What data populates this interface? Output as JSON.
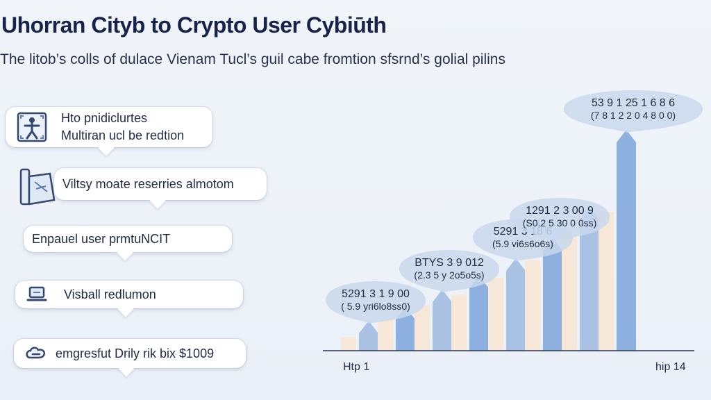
{
  "title": "Uhorran Cityb to Crypto User Cybiūth",
  "subtitle": "The litob’s colls of dulace Vienam Tucl’s guil cabe fromtion sfsrnd’s golial pilins",
  "cards": [
    {
      "lines": [
        "Hto pnidiclurtes",
        "Multiran ucl be redtion"
      ],
      "icon": "person-frame-icon"
    },
    {
      "lines": [
        "Viltsy moate reserries almotom"
      ],
      "icon": "document-scroll-icon"
    },
    {
      "lines": [
        "Enpauel user prmtuNCIT"
      ],
      "icon": ""
    },
    {
      "lines": [
        "Visball redlumon"
      ],
      "icon": "laptop-icon"
    },
    {
      "lines": [
        "emgresfut Drily rik bix $1009"
      ],
      "icon": "cloud-link-icon"
    }
  ],
  "colors": {
    "bar_light": "#f7e7d8",
    "bar_blue": "#a9c1e3",
    "bar_blue_dark": "#8eb0de",
    "bubble": "#c9d8ec",
    "axis": "#2a3550"
  },
  "chart_data": {
    "type": "bar",
    "x_start_label": "Htp 1",
    "x_end_label": "hip 14",
    "series": [
      {
        "values": [
          4,
          9,
          13,
          16,
          21,
          26,
          34,
          40
        ]
      },
      {
        "values": [
          5,
          9,
          14,
          18,
          23,
          29,
          38,
          60
        ]
      }
    ],
    "ylim": [
      0,
      64
    ],
    "annotations": [
      {
        "line1": "5291 3 1 9 00",
        "line2": "( 5.9 yri6lo8ss0)",
        "bar": 0
      },
      {
        "line1": "BTYS 3 9 012",
        "line2": "(2.3 5 y 2o5o5s)",
        "bar": 2
      },
      {
        "line1": "5291 3 18 6",
        "line2": "(5.9 vi6s6o6s)",
        "bar": 4
      },
      {
        "line1": "1291 2 3 00 9",
        "line2": "(S0.2 5 30 0 0ss)",
        "bar": 5
      },
      {
        "line1": "53 9 1 25 1 6 8 6",
        "line2": "(7 8 1 2 2 0 4 8 0 0)",
        "bar": 7
      }
    ]
  }
}
